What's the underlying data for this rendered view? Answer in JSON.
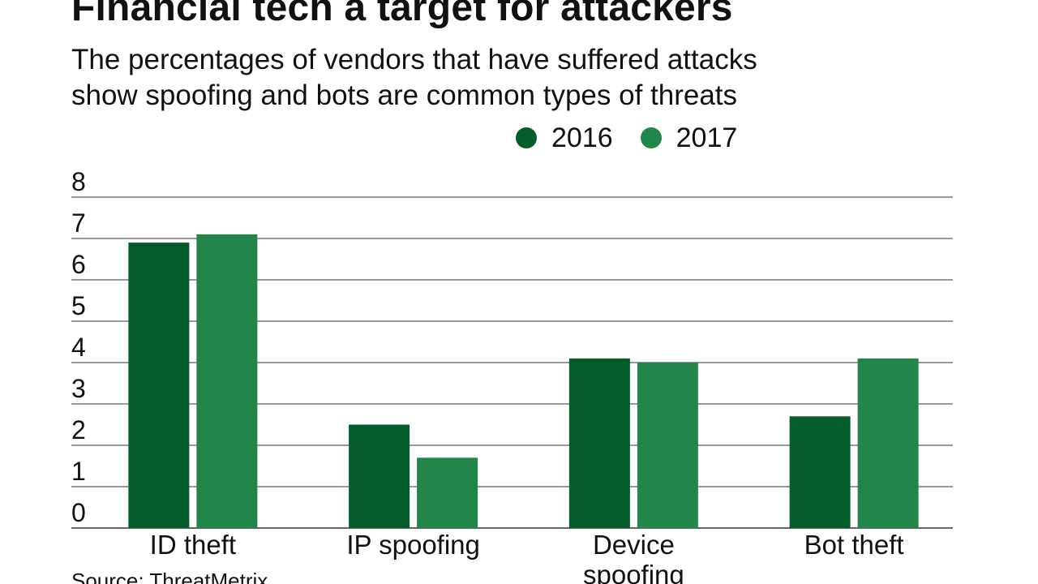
{
  "title": "Financial tech a target for attackers",
  "subtitle": [
    "The percentages of vendors that have suffered attacks",
    "show spoofing and bots are common types of threats"
  ],
  "source": "Source: ThreatMetrix",
  "colors": {
    "series_2016": "#045c2a",
    "series_2017": "#22854a",
    "grid": "#333333"
  },
  "chart_data": {
    "type": "bar",
    "categories": [
      [
        "ID theft"
      ],
      [
        "IP spoofing"
      ],
      [
        "Device",
        "spoofing"
      ],
      [
        "Bot theft"
      ]
    ],
    "series": [
      {
        "name": "2016",
        "values": [
          6.9,
          2.5,
          4.1,
          2.7
        ]
      },
      {
        "name": "2017",
        "values": [
          7.1,
          1.7,
          4.0,
          4.1
        ]
      }
    ],
    "yticks": [
      "0",
      "1",
      "2",
      "3",
      "4",
      "5",
      "6",
      "7",
      "8"
    ],
    "ylim": [
      0,
      8
    ],
    "grid": true,
    "legend": "top-right"
  }
}
